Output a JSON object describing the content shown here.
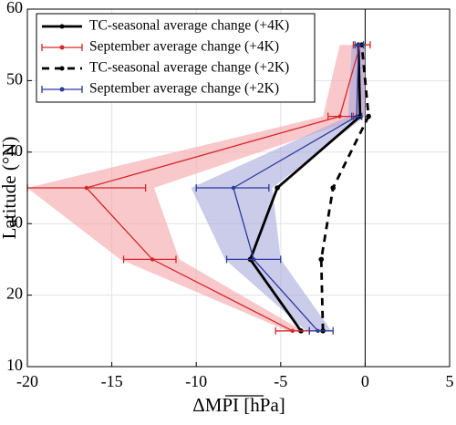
{
  "chart_data": {
    "type": "line",
    "x_label": "ΔMPI [hPa]",
    "y_label": "Latitude (°N)",
    "latitudes": [
      15,
      25,
      35,
      45,
      55
    ],
    "xlim": [
      -20,
      5
    ],
    "xticks": [
      -20,
      -15,
      -10,
      -5,
      0,
      5
    ],
    "ylim": [
      10,
      60
    ],
    "yticks": [
      10,
      20,
      30,
      40,
      50,
      60
    ],
    "grid": true,
    "legend": "upper left",
    "series": [
      {
        "name": "TC-seasonal average change (+4K)",
        "color": "#000000",
        "dash": "solid",
        "values": [
          -3.8,
          -6.8,
          -5.2,
          -0.3,
          -0.4
        ]
      },
      {
        "name": "September average change (+4K)",
        "color": "#d62728",
        "dash": "solid",
        "values": [
          -4.3,
          -12.6,
          -16.5,
          -1.5,
          -0.3
        ],
        "err_low": [
          -5.3,
          -14.3,
          -20,
          -2.2,
          -0.7
        ],
        "err_high": [
          -3.3,
          -11.2,
          -13,
          -0.7,
          0.3
        ],
        "band_low": [
          -4.6,
          -14.5,
          -20,
          -2.5,
          -1.5
        ],
        "band_high": [
          -3.7,
          -11,
          -12.5,
          0,
          0
        ],
        "band_color": "#f4a3a8"
      },
      {
        "name": "TC-seasonal average change (+2K)",
        "color": "#000000",
        "dash": "dashed",
        "values": [
          -2.5,
          -2.6,
          -1.9,
          0.2,
          -0.2
        ]
      },
      {
        "name": "September average change (+2K)",
        "color": "#2b3a9b",
        "dash": "solid",
        "values": [
          -2.8,
          -6.6,
          -7.8,
          -0.5,
          -0.4
        ],
        "err_low": [
          -3.3,
          -8.2,
          -10,
          -0.8,
          -0.6
        ],
        "err_high": [
          -1.9,
          -5,
          -5.7,
          -0.2,
          -0.1
        ],
        "band_low": [
          -3.5,
          -8.3,
          -10.3,
          -1,
          -0.8
        ],
        "band_high": [
          -2,
          -5,
          -5.5,
          0,
          0
        ],
        "band_color": "#a9a8dc"
      }
    ]
  }
}
